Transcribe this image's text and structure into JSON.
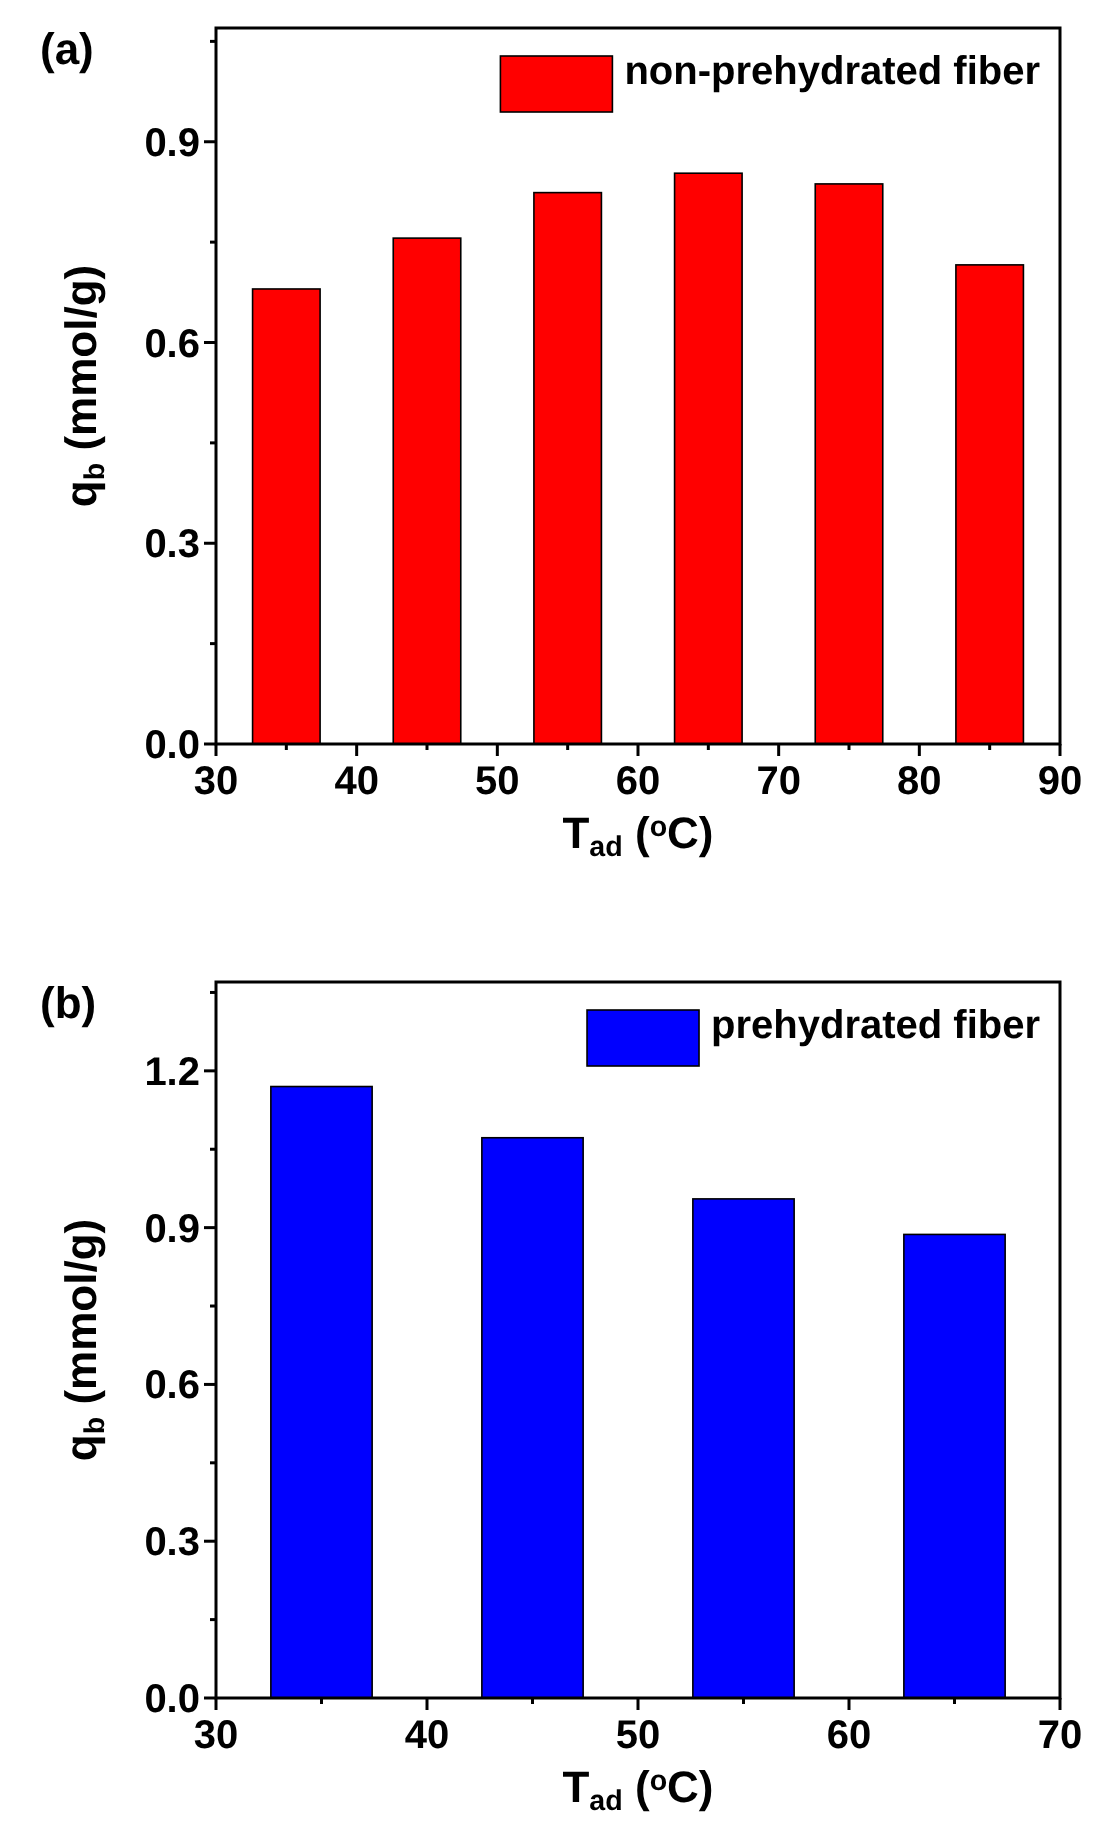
{
  "chart_data": [
    {
      "type": "bar",
      "title": "(a)",
      "xlabel": "T$_{ad}$ ($^{o}$C)",
      "ylabel": "q$_{b}$ (mmol/g)",
      "x": [
        35,
        45,
        55,
        65,
        75,
        85
      ],
      "series": [
        {
          "name": "non-prehydrated fiber",
          "color": "#ff0000",
          "values": [
            0.68,
            0.756,
            0.824,
            0.853,
            0.837,
            0.716
          ]
        }
      ],
      "xlim": [
        30,
        90
      ],
      "xticks": [
        30,
        {
          "value": 35,
          "label": null
        },
        40,
        {
          "value": 45,
          "label": null
        },
        50,
        {
          "value": 55,
          "label": null
        },
        60,
        {
          "value": 65,
          "label": null
        },
        70,
        {
          "value": 75,
          "label": null
        },
        80,
        {
          "value": 85,
          "label": null
        },
        90
      ],
      "ylim": [
        0,
        1.07
      ],
      "yticks": [
        {
          "value": 0,
          "label": "0.0"
        },
        {
          "value": 0.15,
          "label": null
        },
        0.3,
        {
          "value": 0.45,
          "label": null
        },
        0.6,
        {
          "value": 0.75,
          "label": null
        },
        0.9,
        {
          "value": 1.05,
          "label": null
        }
      ],
      "legend": "top right",
      "grid": false
    },
    {
      "type": "bar",
      "title": "(b)",
      "xlabel": "T$_{ad}$ ($^{o}$C)",
      "ylabel": "q$_{b}$ (mmol/g)",
      "x": [
        35,
        45,
        55,
        65
      ],
      "series": [
        {
          "name": "prehydrated fiber",
          "color": "#0000ff",
          "values": [
            1.17,
            1.072,
            0.955,
            0.887
          ]
        }
      ],
      "xlim": [
        30,
        70
      ],
      "xticks": [
        30,
        {
          "value": 35,
          "label": null
        },
        40,
        {
          "value": 45,
          "label": null
        },
        50,
        {
          "value": 55,
          "label": null
        },
        60,
        {
          "value": 65,
          "label": null
        },
        70
      ],
      "ylim": [
        0,
        1.37
      ],
      "yticks": [
        {
          "value": 0,
          "label": "0.0"
        },
        {
          "value": 0.15,
          "label": null
        },
        0.3,
        {
          "value": 0.45,
          "label": null
        },
        0.6,
        {
          "value": 0.75,
          "label": null
        },
        0.9,
        {
          "value": 1.05,
          "label": null
        },
        1.2,
        {
          "value": 1.35,
          "label": null
        }
      ],
      "legend": "top right",
      "grid": false
    }
  ]
}
